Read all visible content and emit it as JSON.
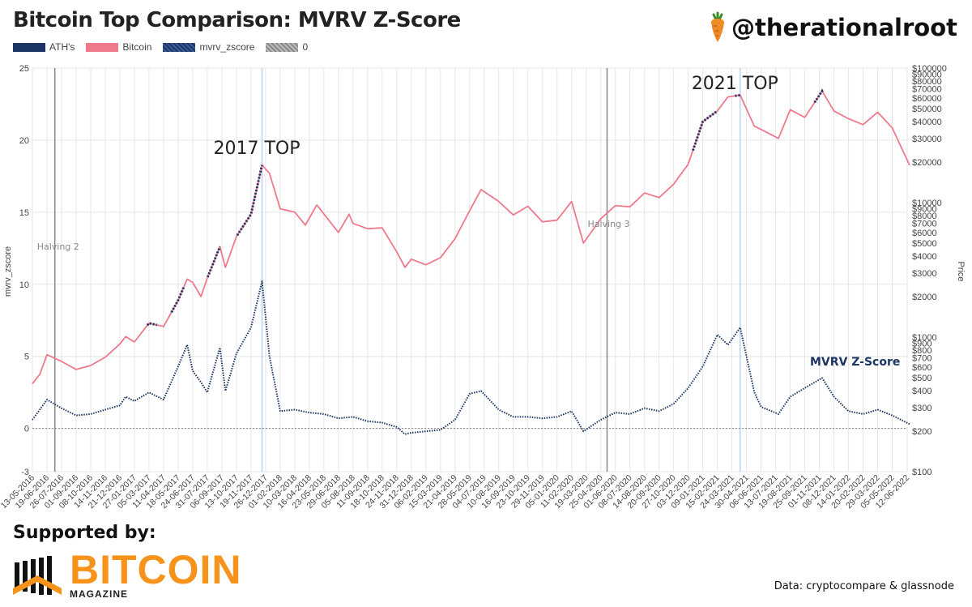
{
  "header": {
    "title": "Bitcoin Top Comparison: MVRV Z-Score",
    "handle": "@therationalroot",
    "handle_icon": "carrot-icon"
  },
  "legend": [
    {
      "label": "ATH's",
      "color": "#1b3564"
    },
    {
      "label": "Bitcoin",
      "color": "#ee7a8c"
    },
    {
      "label": "mvrv_zscore",
      "color": "#1b3564"
    },
    {
      "label": "0",
      "color": "#999999"
    }
  ],
  "footer": {
    "supported_label": "Supported by:",
    "logo_word": "BITCOIN",
    "logo_sub": "MAGAZINE",
    "source": "Data: cryptocompare & glassnode"
  },
  "chart_data": {
    "type": "line",
    "xlabel": "",
    "ylabel_left": "mvrv_zscore",
    "ylabel_right": "Price",
    "y_left_ticks": [
      25,
      20,
      15,
      10,
      5,
      0,
      -3
    ],
    "y_left_range": [
      -3,
      25
    ],
    "y_right_scale": "log",
    "y_right_range": [
      100,
      100000
    ],
    "y_right_ticks": [
      "$100000",
      "$90000",
      "$80000",
      "$70000",
      "$60000",
      "$50000",
      "$40000",
      "$30000",
      "$20000",
      "$10000",
      "$9000",
      "$8000",
      "$7000",
      "$6000",
      "$5000",
      "$4000",
      "$3000",
      "$2000",
      "$1000",
      "$900",
      "$800",
      "$700",
      "$600",
      "$500",
      "$400",
      "$300",
      "$200",
      "$100"
    ],
    "x_ticks": [
      "13-05-2016",
      "19-06-2016",
      "26-07-2016",
      "01-09-2016",
      "08-10-2016",
      "14-11-2016",
      "21-12-2016",
      "27-01-2017",
      "05-03-2017",
      "11-04-2017",
      "18-05-2017",
      "24-06-2017",
      "31-07-2017",
      "06-09-2017",
      "13-10-2017",
      "19-11-2017",
      "26-12-2017",
      "01-02-2018",
      "10-03-2018",
      "16-04-2018",
      "23-05-2018",
      "29-06-2018",
      "05-08-2018",
      "11-09-2018",
      "18-10-2018",
      "24-11-2018",
      "31-12-2018",
      "06-02-2019",
      "15-03-2019",
      "21-04-2019",
      "28-05-2019",
      "04-07-2019",
      "10-08-2019",
      "16-09-2019",
      "23-10-2019",
      "29-11-2019",
      "05-01-2020",
      "11-02-2020",
      "19-03-2020",
      "25-04-2020",
      "01-06-2020",
      "08-07-2020",
      "14-08-2020",
      "20-09-2020",
      "27-10-2020",
      "03-12-2020",
      "09-01-2021",
      "15-02-2021",
      "24-03-2021",
      "30-04-2021",
      "06-06-2021",
      "13-07-2021",
      "19-08-2021",
      "25-09-2021",
      "01-11-2021",
      "08-12-2021",
      "14-01-2022",
      "20-02-2022",
      "29-03-2022",
      "05-05-2022",
      "12-06-2022"
    ],
    "annotations": [
      {
        "text": "2017 TOP",
        "x": "17-12-2017"
      },
      {
        "text": "2021 TOP",
        "x": "14-04-2021"
      },
      {
        "text": "Halving 2",
        "x": "09-07-2016"
      },
      {
        "text": "Halving 3",
        "x": "11-05-2020"
      },
      {
        "text": "MVRV Z-Score"
      }
    ],
    "series": [
      {
        "name": "Bitcoin",
        "color": "#ee7a8c",
        "axis": "right",
        "x": [
          "13-05-2016",
          "01-06-2016",
          "19-06-2016",
          "26-07-2016",
          "01-09-2016",
          "08-10-2016",
          "14-11-2016",
          "21-12-2016",
          "05-01-2017",
          "27-01-2017",
          "05-03-2017",
          "11-04-2017",
          "18-05-2017",
          "10-06-2017",
          "24-06-2017",
          "15-07-2017",
          "31-07-2017",
          "01-09-2017",
          "15-09-2017",
          "13-10-2017",
          "19-11-2017",
          "17-12-2017",
          "05-01-2018",
          "01-02-2018",
          "10-03-2018",
          "06-04-2018",
          "05-05-2018",
          "29-06-2018",
          "26-07-2018",
          "05-08-2018",
          "11-09-2018",
          "18-10-2018",
          "24-11-2018",
          "15-12-2018",
          "31-12-2018",
          "06-02-2019",
          "15-03-2019",
          "21-04-2019",
          "28-05-2019",
          "26-06-2019",
          "10-08-2019",
          "16-09-2019",
          "25-09-2019",
          "23-10-2019",
          "29-11-2019",
          "05-01-2020",
          "11-02-2020",
          "12-03-2020",
          "25-04-2020",
          "01-06-2020",
          "08-07-2020",
          "14-08-2020",
          "20-09-2020",
          "27-10-2020",
          "03-12-2020",
          "09-01-2021",
          "15-02-2021",
          "14-03-2021",
          "14-04-2021",
          "20-05-2021",
          "06-06-2021",
          "20-07-2021",
          "19-08-2021",
          "25-09-2021",
          "08-11-2021",
          "08-12-2021",
          "14-01-2022",
          "20-02-2022",
          "29-03-2022",
          "05-05-2022",
          "18-06-2022"
        ],
        "values": [
          450,
          530,
          740,
          660,
          575,
          615,
          710,
          890,
          1010,
          920,
          1270,
          1200,
          1880,
          2700,
          2550,
          2000,
          2750,
          4700,
          3300,
          5600,
          8200,
          19000,
          16500,
          9000,
          8500,
          6800,
          9600,
          6000,
          8200,
          7000,
          6400,
          6500,
          4300,
          3300,
          3800,
          3450,
          3900,
          5400,
          8700,
          12500,
          10200,
          8100,
          8400,
          9400,
          7200,
          7400,
          10200,
          5000,
          7600,
          9500,
          9300,
          11800,
          10900,
          13700,
          19300,
          40000,
          48000,
          61000,
          63000,
          37000,
          35000,
          30000,
          49000,
          43000,
          67500,
          48000,
          42000,
          38000,
          47000,
          36000,
          19000
        ]
      },
      {
        "name": "mvrv_zscore",
        "color": "#1b3564",
        "axis": "left",
        "style": "dotted",
        "x": [
          "13-05-2016",
          "19-06-2016",
          "26-07-2016",
          "01-09-2016",
          "08-10-2016",
          "14-11-2016",
          "21-12-2016",
          "05-01-2017",
          "27-01-2017",
          "05-03-2017",
          "11-04-2017",
          "18-05-2017",
          "10-06-2017",
          "24-06-2017",
          "15-07-2017",
          "31-07-2017",
          "01-09-2017",
          "15-09-2017",
          "13-10-2017",
          "19-11-2017",
          "17-12-2017",
          "05-01-2018",
          "01-02-2018",
          "10-03-2018",
          "16-04-2018",
          "23-05-2018",
          "29-06-2018",
          "05-08-2018",
          "11-09-2018",
          "18-10-2018",
          "24-11-2018",
          "15-12-2018",
          "31-12-2018",
          "06-02-2019",
          "15-03-2019",
          "21-04-2019",
          "28-05-2019",
          "26-06-2019",
          "10-08-2019",
          "16-09-2019",
          "23-10-2019",
          "29-11-2019",
          "05-01-2020",
          "11-02-2020",
          "12-03-2020",
          "25-04-2020",
          "01-06-2020",
          "08-07-2020",
          "14-08-2020",
          "20-09-2020",
          "27-10-2020",
          "03-12-2020",
          "09-01-2021",
          "15-02-2021",
          "14-03-2021",
          "14-04-2021",
          "20-05-2021",
          "06-06-2021",
          "20-07-2021",
          "19-08-2021",
          "25-09-2021",
          "08-11-2021",
          "08-12-2021",
          "14-01-2022",
          "20-02-2022",
          "29-03-2022",
          "05-05-2022",
          "18-06-2022"
        ],
        "values": [
          0.6,
          2.0,
          1.4,
          0.9,
          1.0,
          1.3,
          1.6,
          2.2,
          1.9,
          2.5,
          2.0,
          4.3,
          5.8,
          4.0,
          3.2,
          2.5,
          5.6,
          2.6,
          5.2,
          7.0,
          10.2,
          5.0,
          1.2,
          1.3,
          1.1,
          1.0,
          0.7,
          0.8,
          0.5,
          0.4,
          0.1,
          -0.4,
          -0.3,
          -0.2,
          -0.1,
          0.6,
          2.4,
          2.6,
          1.3,
          0.8,
          0.8,
          0.7,
          0.8,
          1.2,
          -0.2,
          0.6,
          1.1,
          1.0,
          1.4,
          1.2,
          1.7,
          2.8,
          4.3,
          6.5,
          5.8,
          7.0,
          2.5,
          1.5,
          1.0,
          2.2,
          2.8,
          3.5,
          2.2,
          1.2,
          1.0,
          1.3,
          0.9,
          0.3
        ]
      }
    ],
    "ath_segments": [
      [
        "01-03-2017",
        "25-03-2017"
      ],
      [
        "01-05-2017",
        "01-06-2017"
      ],
      [
        "01-08-2017",
        "01-09-2017"
      ],
      [
        "15-10-2017",
        "17-12-2017"
      ],
      [
        "15-12-2020",
        "15-02-2021"
      ],
      [
        "01-04-2021",
        "14-04-2021"
      ],
      [
        "20-10-2021",
        "10-11-2021"
      ]
    ],
    "grid": true,
    "legend_position": "top-left"
  }
}
